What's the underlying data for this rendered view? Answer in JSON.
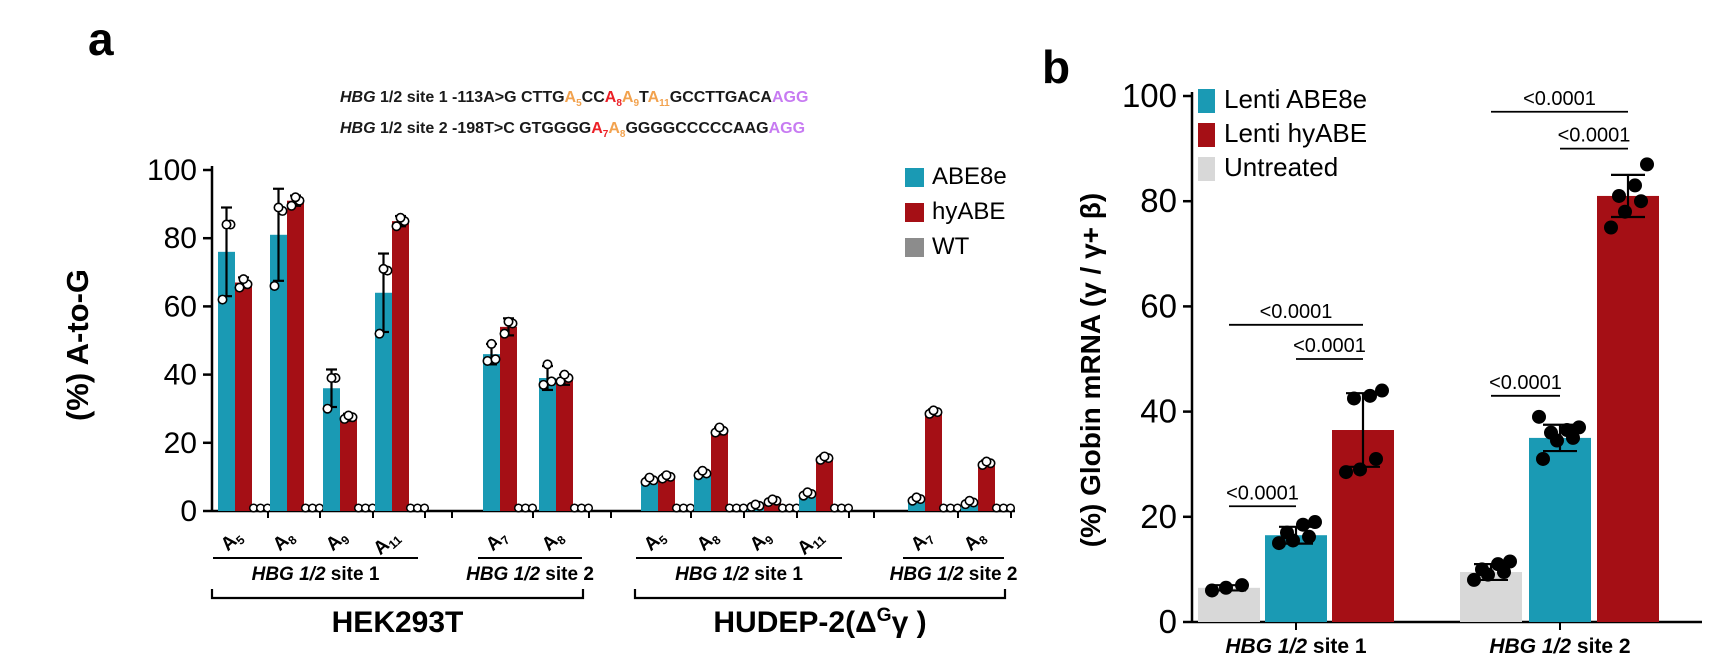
{
  "colors": {
    "teal": "#1A9AB4",
    "dark_red": "#A50F15",
    "wt_gray": "#8C8C8C",
    "light_gray": "#D8D8D8",
    "orange": "#F2A24E",
    "violet": "#C77BF2",
    "arrow_red": "#EC2027",
    "black": "#000000"
  },
  "panel_a": {
    "label": "a",
    "sequence_lines": [
      {
        "prefix_italic": "HBG",
        "prefix_rest": " 1/2 site 1 -113A>G ",
        "segments": [
          {
            "t": "CTTG",
            "c": "black"
          },
          {
            "t": "A",
            "sub": "5",
            "c": "orange"
          },
          {
            "t": "CC",
            "c": "black"
          },
          {
            "t": "A",
            "sub": "8",
            "c": "red",
            "arrow": "down",
            "arrow_label": "-113"
          },
          {
            "t": "A",
            "sub": "9",
            "c": "orange"
          },
          {
            "t": "T",
            "c": "black"
          },
          {
            "t": "A",
            "sub": "11",
            "c": "orange"
          },
          {
            "t": "GCCTTGACA",
            "c": "black"
          },
          {
            "t": "AGG",
            "c": "violet"
          }
        ]
      },
      {
        "prefix_italic": "HBG",
        "prefix_rest": " 1/2 site 2 -198T>C ",
        "segments": [
          {
            "t": "GTGGGG",
            "c": "black"
          },
          {
            "t": "A",
            "sub": "7",
            "c": "red",
            "arrow": "up",
            "arrow_label": "-198"
          },
          {
            "t": "A",
            "sub": "8",
            "c": "orange"
          },
          {
            "t": "GGGGCCCCCAAG",
            "c": "black"
          },
          {
            "t": "AGG",
            "c": "violet"
          }
        ]
      }
    ]
  },
  "panel_b": {
    "label": "b"
  },
  "chart_data": [
    {
      "type": "bar",
      "panel": "a",
      "title": "",
      "ylabel": "(%) A-to-G",
      "ylim": [
        0,
        100
      ],
      "yticks": [
        0,
        20,
        40,
        60,
        80,
        100
      ],
      "grid": false,
      "legend_position": "right-top",
      "series": [
        {
          "name": "ABE8e",
          "color_key": "teal"
        },
        {
          "name": "hyABE",
          "color_key": "dark_red"
        },
        {
          "name": "WT",
          "color_key": "wt_gray"
        }
      ],
      "groups": [
        {
          "tick": "A",
          "sub": "5",
          "values": [
            76,
            67,
            0
          ],
          "sd": [
            13,
            1.5,
            0
          ],
          "points": [
            [
              62,
              84,
              84
            ],
            [
              65.5,
              66.5,
              68
            ],
            [
              0,
              0,
              0
            ]
          ]
        },
        {
          "tick": "A",
          "sub": "8",
          "values": [
            81,
            91,
            0
          ],
          "sd": [
            13.5,
            1.5,
            0
          ],
          "points": [
            [
              66,
              88,
              89
            ],
            [
              89.5,
              91,
              92
            ],
            [
              0,
              0,
              0
            ]
          ]
        },
        {
          "tick": "A",
          "sub": "9",
          "values": [
            36,
            27.5,
            0
          ],
          "sd": [
            5.5,
            1,
            0
          ],
          "points": [
            [
              30,
              39,
              39
            ],
            [
              27,
              27.5,
              28
            ],
            [
              0,
              0,
              0
            ]
          ]
        },
        {
          "tick": "A",
          "sub": "11",
          "values": [
            64,
            85,
            0
          ],
          "sd": [
            11.5,
            1.5,
            0
          ],
          "points": [
            [
              52,
              70.5,
              71
            ],
            [
              83.5,
              85,
              86
            ],
            [
              0,
              0,
              0
            ]
          ]
        },
        {
          "tick": "A",
          "sub": "7",
          "values": [
            46,
            54,
            0
          ],
          "sd": [
            3,
            2.5,
            0
          ],
          "points": [
            [
              44,
              44.5,
              49
            ],
            [
              52,
              55,
              55.5
            ],
            [
              0,
              0,
              0
            ]
          ]
        },
        {
          "tick": "A",
          "sub": "8",
          "values": [
            39,
            38.5,
            0
          ],
          "sd": [
            3.5,
            1.5,
            0
          ],
          "points": [
            [
              37,
              38,
              43
            ],
            [
              38,
              39,
              40
            ],
            [
              0,
              0,
              0
            ]
          ]
        },
        {
          "tick": "A",
          "sub": "5",
          "values": [
            9,
            10,
            0
          ],
          "sd": [
            0.8,
            0.8,
            0
          ],
          "points": [
            [
              8.5,
              9,
              9.8
            ],
            [
              9.5,
              10,
              10.5
            ],
            [
              0,
              0,
              0
            ]
          ]
        },
        {
          "tick": "A",
          "sub": "8",
          "values": [
            11,
            23.5,
            0
          ],
          "sd": [
            0.8,
            1,
            0
          ],
          "points": [
            [
              10.5,
              11,
              11.8
            ],
            [
              23,
              23.5,
              24.5
            ],
            [
              0,
              0,
              0
            ]
          ]
        },
        {
          "tick": "A",
          "sub": "9",
          "values": [
            1.5,
            3,
            0
          ],
          "sd": [
            0.4,
            0.5,
            0
          ],
          "points": [
            [
              1.2,
              1.5,
              1.9
            ],
            [
              2.6,
              3,
              3.4
            ],
            [
              0,
              0,
              0
            ]
          ]
        },
        {
          "tick": "A",
          "sub": "11",
          "values": [
            5,
            15.5,
            0
          ],
          "sd": [
            0.6,
            0.8,
            0
          ],
          "points": [
            [
              4.5,
              5,
              5.5
            ],
            [
              15,
              15.5,
              16
            ],
            [
              0,
              0,
              0
            ]
          ]
        },
        {
          "tick": "A",
          "sub": "7",
          "values": [
            3.5,
            29,
            0
          ],
          "sd": [
            0.6,
            0.8,
            0
          ],
          "points": [
            [
              3,
              3.5,
              4
            ],
            [
              28.5,
              29,
              29.5
            ],
            [
              0,
              0,
              0
            ]
          ]
        },
        {
          "tick": "A",
          "sub": "8",
          "values": [
            2.5,
            14,
            0
          ],
          "sd": [
            0.5,
            0.8,
            0
          ],
          "points": [
            [
              2,
              2.5,
              3
            ],
            [
              13.5,
              14,
              14.5
            ],
            [
              0,
              0,
              0
            ]
          ]
        }
      ],
      "sites": [
        {
          "label_italic": "HBG 1/2",
          "label_rest": " site 1",
          "from": 0,
          "to": 3
        },
        {
          "label_italic": "HBG 1/2",
          "label_rest": " site 2",
          "from": 4,
          "to": 5
        },
        {
          "label_italic": "HBG 1/2",
          "label_rest": " site 1",
          "from": 6,
          "to": 9
        },
        {
          "label_italic": "HBG 1/2",
          "label_rest": " site 2",
          "from": 10,
          "to": 11
        }
      ],
      "cell_lines": [
        {
          "parts": [
            {
              "t": "HEK293T"
            }
          ],
          "from": 0,
          "to": 5
        },
        {
          "parts": [
            {
              "t": "HUDEP-2(Δ"
            },
            {
              "t": "G",
              "sup": true
            },
            {
              "t": "γ )"
            }
          ],
          "from": 6,
          "to": 11
        }
      ],
      "legend": [
        {
          "label": "ABE8e",
          "color_key": "teal"
        },
        {
          "label": "hyABE",
          "color_key": "dark_red"
        },
        {
          "label": "WT",
          "color_key": "wt_gray"
        }
      ]
    },
    {
      "type": "bar",
      "panel": "b",
      "title": "",
      "ylabel": "(%) Globin mRNA (γ / γ+ β)",
      "ylim": [
        0,
        100
      ],
      "yticks": [
        0,
        20,
        40,
        60,
        80,
        100
      ],
      "grid": false,
      "legend_position": "left-top",
      "series": [
        {
          "name": "Untreated",
          "color_key": "light_gray"
        },
        {
          "name": "Lenti ABE8e",
          "color_key": "teal"
        },
        {
          "name": "Lenti hyABE",
          "color_key": "dark_red"
        }
      ],
      "groups": [
        {
          "label_italic": "HBG 1/2",
          "label_rest": " site 1",
          "bars": [
            {
              "name": "Untreated",
              "mean": 6.5,
              "sd": 0.5,
              "points": [
                6,
                6.5,
                7
              ]
            },
            {
              "name": "Lenti ABE8e",
              "mean": 16.5,
              "sd": 1.6,
              "points": [
                15,
                15.5,
                16.2,
                17,
                18.5,
                19
              ]
            },
            {
              "name": "Lenti hyABE",
              "mean": 36.5,
              "sd": 7,
              "points": [
                28.5,
                29,
                31,
                42.5,
                43,
                44
              ]
            }
          ],
          "comparisons": [
            {
              "from": 0,
              "to": 1,
              "p": "<0.0001",
              "height": 22
            },
            {
              "from": 1,
              "to": 2,
              "p": "<0.0001",
              "height": 50
            },
            {
              "from": 0,
              "to": 2,
              "p": "<0.0001",
              "height": 56.5
            }
          ]
        },
        {
          "label_italic": "HBG 1/2",
          "label_rest": " site 2",
          "bars": [
            {
              "name": "Untreated",
              "mean": 9.5,
              "sd": 1.5,
              "points": [
                8,
                9,
                9.5,
                10,
                11,
                11.5
              ]
            },
            {
              "name": "Lenti ABE8e",
              "mean": 35,
              "sd": 2.5,
              "points": [
                31,
                34.5,
                35,
                36,
                36.5,
                37,
                39
              ]
            },
            {
              "name": "Lenti hyABE",
              "mean": 81,
              "sd": 4,
              "points": [
                75,
                78,
                80,
                81,
                83,
                87
              ]
            }
          ],
          "comparisons": [
            {
              "from": 0,
              "to": 1,
              "p": "<0.0001",
              "height": 43
            },
            {
              "from": 1,
              "to": 2,
              "p": "<0.0001",
              "height": 90
            },
            {
              "from": 0,
              "to": 2,
              "p": "<0.0001",
              "height": 97
            }
          ]
        }
      ],
      "legend": [
        {
          "label": "Lenti ABE8e",
          "color_key": "teal"
        },
        {
          "label": "Lenti hyABE",
          "color_key": "dark_red"
        },
        {
          "label": "Untreated",
          "color_key": "light_gray"
        }
      ]
    }
  ]
}
